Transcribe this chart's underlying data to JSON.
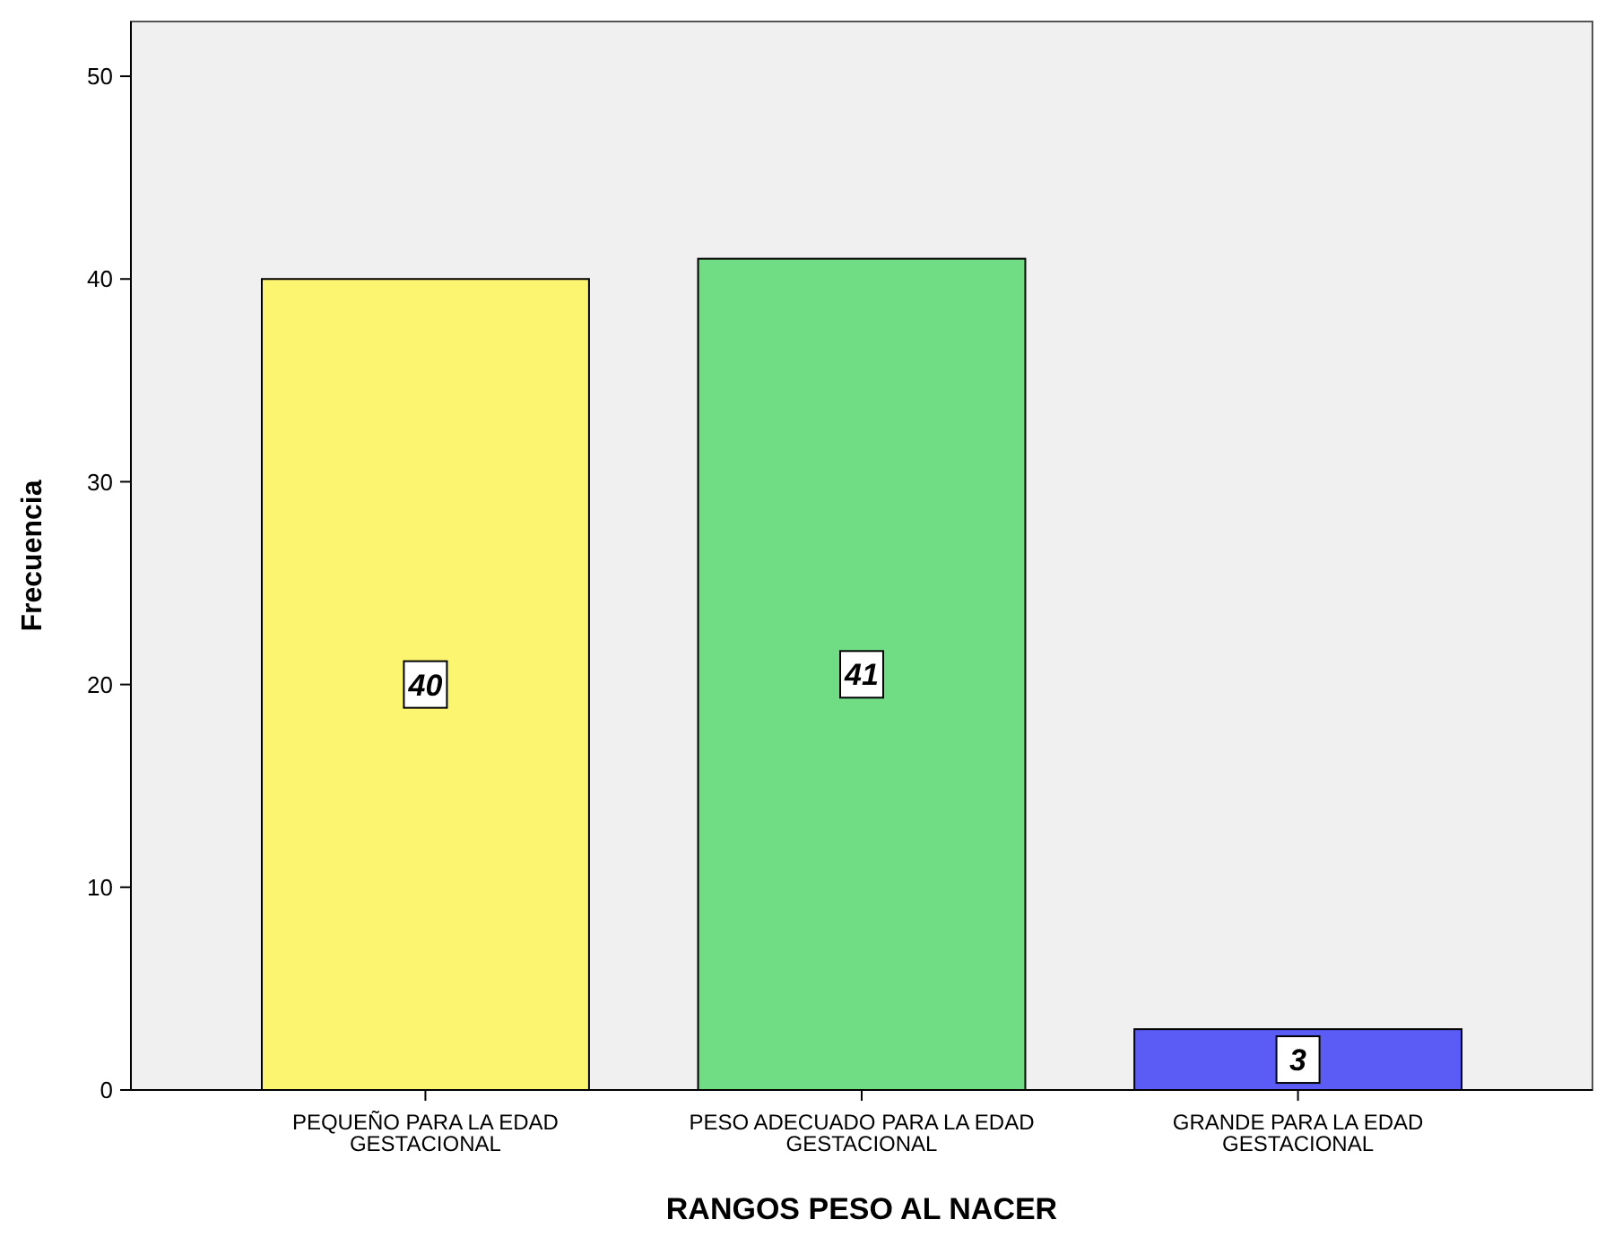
{
  "chart_data": {
    "type": "bar",
    "xlabel": "RANGOS PESO AL NACER",
    "ylabel": "Frecuencia",
    "categories": [
      "PEQUEÑO PARA LA EDAD GESTACIONAL",
      "PESO ADECUADO PARA LA EDAD GESTACIONAL",
      "GRANDE PARA LA EDAD GESTACIONAL"
    ],
    "values": [
      40,
      41,
      3
    ],
    "colors": [
      "#fbf56f",
      "#70dd84",
      "#5b5cf6"
    ],
    "ylim": [
      0,
      52.7
    ],
    "yticks": [
      0,
      10,
      20,
      30,
      40,
      50
    ],
    "grid": false,
    "data_labels": true
  }
}
